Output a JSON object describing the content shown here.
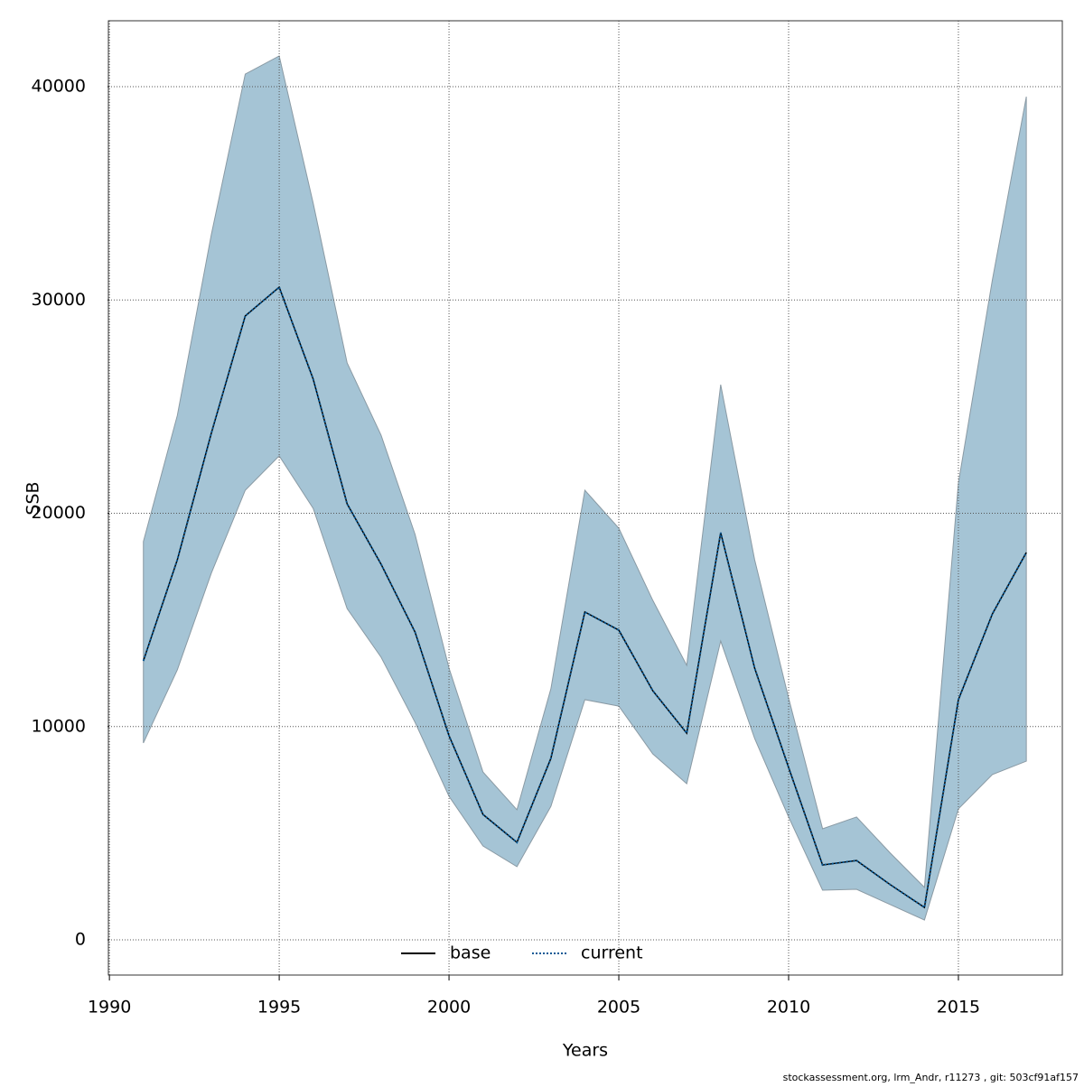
{
  "chart_data": {
    "type": "line",
    "xlabel": "Years",
    "ylabel": "SSB",
    "footnote": "stockassessment.org, lrm_Andr, r11273 , git: 503cf91af157",
    "x": [
      1991,
      1992,
      1993,
      1994,
      1995,
      1996,
      1997,
      1998,
      1999,
      2000,
      2001,
      2002,
      2003,
      2004,
      2005,
      2006,
      2007,
      2008,
      2009,
      2010,
      2011,
      2012,
      2013,
      2014,
      2015,
      2016,
      2017
    ],
    "series": [
      {
        "name": "base",
        "color": "#000000",
        "style": "solid",
        "values": [
          13080,
          17820,
          23750,
          29250,
          30600,
          26290,
          20440,
          17610,
          14430,
          9570,
          5880,
          4570,
          8510,
          15370,
          14520,
          11680,
          9690,
          19090,
          12740,
          8080,
          3510,
          3720,
          2580,
          1520,
          11260,
          15280,
          18160
        ]
      },
      {
        "name": "current",
        "color": "#0a5a96",
        "style": "dotted",
        "values": [
          13080,
          17820,
          23750,
          29250,
          30600,
          26290,
          20440,
          17610,
          14430,
          9570,
          5880,
          4570,
          8510,
          15370,
          14520,
          11680,
          9690,
          19090,
          12740,
          8080,
          3510,
          3720,
          2580,
          1520,
          11260,
          15280,
          18160
        ]
      }
    ],
    "band": {
      "color": "#a5c4d5",
      "upper": [
        18670,
        24590,
        33060,
        40590,
        41440,
        34540,
        27050,
        23660,
        19010,
        12740,
        7870,
        6100,
        11770,
        21080,
        19300,
        15920,
        12870,
        26030,
        17820,
        11340,
        5210,
        5760,
        4060,
        2460,
        21420,
        30940,
        39530
      ],
      "lower": [
        9230,
        12660,
        17190,
        21080,
        22690,
        20230,
        15530,
        13250,
        10200,
        6730,
        4400,
        3430,
        6260,
        11260,
        10960,
        8720,
        7320,
        14010,
        9440,
        5760,
        2330,
        2370,
        1650,
        930,
        6140,
        7750,
        8380
      ]
    },
    "xlim": [
      1989.97,
      2018.06
    ],
    "ylim": [
      -1650,
      43090
    ],
    "xticks": [
      1990,
      1995,
      2000,
      2005,
      2010,
      2015
    ],
    "yticks": [
      0,
      10000,
      20000,
      30000,
      40000
    ],
    "grid": true,
    "legend": "bottom"
  }
}
